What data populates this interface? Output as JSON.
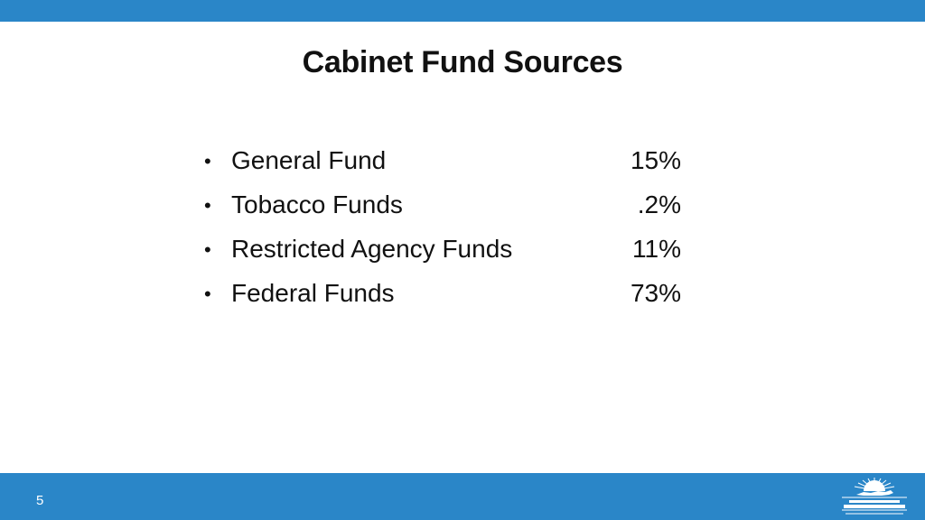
{
  "theme": {
    "bar_color": "#2a86c8",
    "logo_color": "#ffffff"
  },
  "slide": {
    "title": "Cabinet Fund Sources",
    "page_number": "5"
  },
  "funds": [
    {
      "label": "General Fund",
      "value": "15%"
    },
    {
      "label": "Tobacco Funds",
      "value": ".2%"
    },
    {
      "label": "Restricted Agency Funds",
      "value": "11%"
    },
    {
      "label": "Federal Funds",
      "value": "73%"
    }
  ],
  "logo": {
    "icon": "sunrise-state-logo-icon"
  }
}
